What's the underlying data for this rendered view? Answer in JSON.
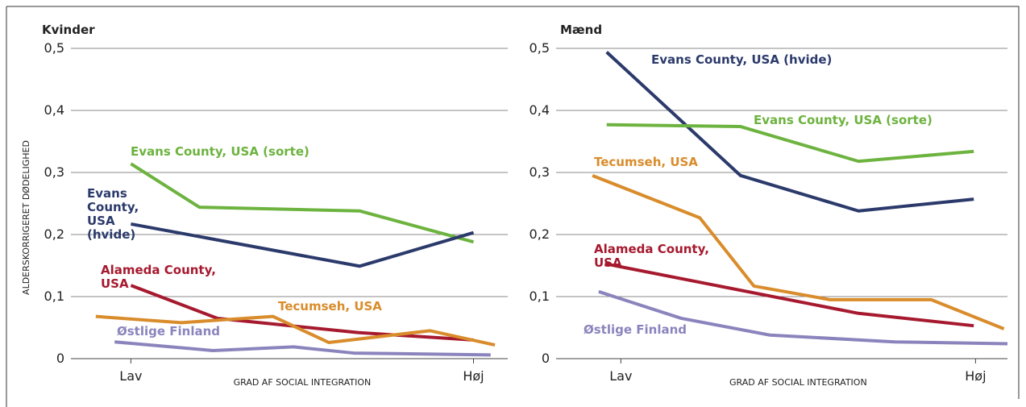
{
  "chart_data": [
    {
      "type": "line",
      "title": "Kvinder",
      "ylabel": "ALDERSKORRIGERET DØDELIGHED",
      "xlabel": "GRAD AF SOCIAL INTEGRATION",
      "xlim": [
        0.3,
        5.4
      ],
      "xticks": [
        {
          "value": 1,
          "label": "Lav"
        },
        {
          "value": 5,
          "label": "Høj"
        }
      ],
      "ylim": [
        0,
        0.5
      ],
      "yticks": [
        0,
        {
          "value": 0.1,
          "label": "0,1"
        },
        {
          "value": 0.2,
          "label": "0,2"
        },
        {
          "value": 0.3,
          "label": "0,3"
        },
        {
          "value": 0.4,
          "label": "0,4"
        },
        {
          "value": 0.5,
          "label": "0,5"
        }
      ],
      "grid": true,
      "series": [
        {
          "name": "Evans County, USA (sorte)",
          "color": "#6db33f",
          "x": [
            1,
            1.8,
            3.67,
            5
          ],
          "values": [
            0.314,
            0.244,
            0.238,
            0.188
          ]
        },
        {
          "name": "Evans County, USA (hvide)",
          "color": "#2b3a6b",
          "x": [
            1,
            3.67,
            5
          ],
          "values": [
            0.217,
            0.149,
            0.203
          ]
        },
        {
          "name": "Alameda County, USA",
          "color": "#a6192e",
          "x": [
            1,
            2.01,
            3.65,
            5
          ],
          "values": [
            0.118,
            0.065,
            0.042,
            0.03
          ]
        },
        {
          "name": "Tecumseh, USA",
          "color": "#d98c2b",
          "x": [
            0.59,
            1.59,
            2.66,
            3.31,
            4.49,
            5.25
          ],
          "values": [
            0.068,
            0.058,
            0.068,
            0.026,
            0.045,
            0.022
          ]
        },
        {
          "name": "Østlige Finland",
          "color": "#8a84bd",
          "x": [
            0.81,
            1.96,
            2.9,
            3.6,
            5.2
          ],
          "values": [
            0.027,
            0.013,
            0.019,
            0.009,
            0.006
          ]
        }
      ]
    },
    {
      "type": "line",
      "title": "Mænd",
      "xlabel": "GRAD AF SOCIAL INTEGRATION",
      "xlim": [
        0.27,
        5.36
      ],
      "xticks": [
        {
          "value": 1,
          "label": "Lav"
        },
        {
          "value": 5,
          "label": "Høj"
        }
      ],
      "ylim": [
        0,
        0.5
      ],
      "yticks": [
        0,
        {
          "value": 0.1,
          "label": "0,1"
        },
        {
          "value": 0.2,
          "label": "0,2"
        },
        {
          "value": 0.3,
          "label": "0,3"
        },
        {
          "value": 0.4,
          "label": "0,4"
        },
        {
          "value": 0.5,
          "label": "0,5"
        }
      ],
      "grid": true,
      "series": [
        {
          "name": "Evans County, USA (hvide)",
          "color": "#2b3a6b",
          "x": [
            0.84,
            2.35,
            3.68,
            4.98
          ],
          "values": [
            0.494,
            0.295,
            0.238,
            0.257
          ]
        },
        {
          "name": "Evans County, USA (sorte)",
          "color": "#6db33f",
          "x": [
            0.84,
            2.35,
            3.68,
            4.98
          ],
          "values": [
            0.377,
            0.374,
            0.318,
            0.334
          ]
        },
        {
          "name": "Tecumseh, USA",
          "color": "#d98c2b",
          "x": [
            0.68,
            1.89,
            2.5,
            3.36,
            4.5,
            5.32
          ],
          "values": [
            0.295,
            0.227,
            0.117,
            0.095,
            0.095,
            0.048
          ]
        },
        {
          "name": "Alameda County, USA",
          "color": "#a6192e",
          "x": [
            0.82,
            3.68,
            4.98
          ],
          "values": [
            0.153,
            0.073,
            0.053
          ]
        },
        {
          "name": "Østlige Finland",
          "color": "#8a84bd",
          "x": [
            0.75,
            1.68,
            2.68,
            4.09,
            5.36
          ],
          "values": [
            0.108,
            0.065,
            0.038,
            0.027,
            0.024
          ]
        }
      ]
    }
  ]
}
